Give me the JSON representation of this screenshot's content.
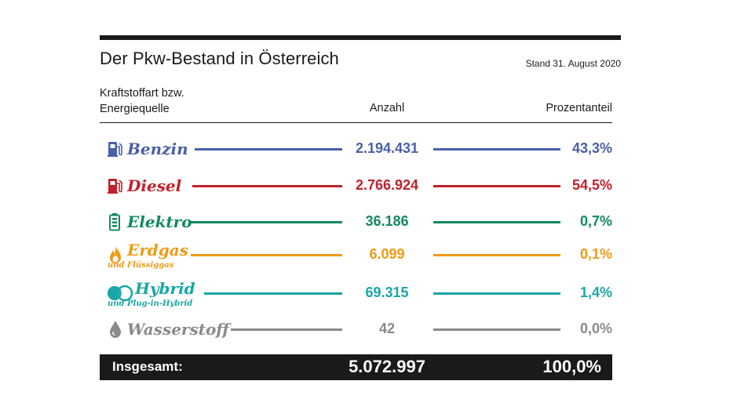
{
  "title": "Der Pkw-Bestand in Österreich",
  "date": "Stand 31. August 2020",
  "headers": {
    "fuel_line1": "Kraftstoffart bzw.",
    "fuel_line2": "Energiequelle",
    "count": "Anzahl",
    "percent": "Prozentanteil"
  },
  "chart_data": {
    "type": "table",
    "title": "Der Pkw-Bestand in Österreich",
    "subtitle": "Stand 31. August 2020",
    "columns": [
      "Kraftstoffart bzw. Energiequelle",
      "Anzahl",
      "Prozentanteil"
    ],
    "rows": [
      {
        "label": "Benzin",
        "sublabel": "",
        "count": "2.194.431",
        "percent": "43,3%",
        "value": 2194431,
        "share": 43.3,
        "color": "#4a5fa8",
        "icon": "fuel-pump-icon"
      },
      {
        "label": "Diesel",
        "sublabel": "",
        "count": "2.766.924",
        "percent": "54,5%",
        "value": 2766924,
        "share": 54.5,
        "color": "#c4202b",
        "icon": "fuel-pump-icon"
      },
      {
        "label": "Elektro",
        "sublabel": "",
        "count": "36.186",
        "percent": "0,7%",
        "value": 36186,
        "share": 0.7,
        "color": "#128a5e",
        "icon": "battery-icon"
      },
      {
        "label": "Erdgas",
        "sublabel": "und Flüssiggas",
        "count": "6.099",
        "percent": "0,1%",
        "value": 6099,
        "share": 0.1,
        "color": "#f19a12",
        "icon": "flame-icon"
      },
      {
        "label": "Hybrid",
        "sublabel": "und Plug-in-Hybrid",
        "count": "69.315",
        "percent": "1,4%",
        "value": 69315,
        "share": 1.4,
        "color": "#1aa6a6",
        "icon": "hybrid-icon"
      },
      {
        "label": "Wasserstoff",
        "sublabel": "",
        "count": "42",
        "percent": "0,0%",
        "value": 42,
        "share": 0.0,
        "color": "#8a8a8a",
        "icon": "water-drop-icon"
      }
    ],
    "total": {
      "label": "Insgesamt:",
      "count": "5.072.997",
      "percent": "100,0%",
      "value": 5072997,
      "share": 100.0
    }
  }
}
